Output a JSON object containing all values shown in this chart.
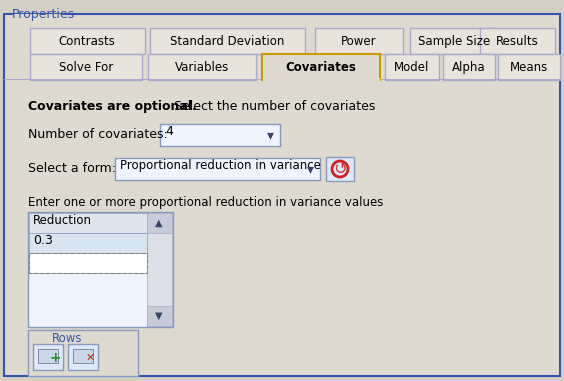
{
  "bg_color": "#d4cfc4",
  "panel_bg": "#dedad0",
  "white": "#ffffff",
  "blue_text": "#3355aa",
  "tab_border": "#aaaacc",
  "active_tab_border": "#cc9900",
  "input_bg": "#f0f4ff",
  "title": "Properties",
  "tabs_row1": [
    "Contrasts",
    "Standard Deviation",
    "Power",
    "Sample Size",
    "Results"
  ],
  "tabs_row2": [
    "Solve For",
    "Variables",
    "Covariates",
    "Model",
    "Alpha",
    "Means"
  ],
  "active_tab": "Covariates",
  "label_bold": "Covariates are optional.",
  "label_normal": " Select the number of covariates",
  "num_cov_label": "Number of covariates:",
  "num_cov_value": "4",
  "form_label": "Select a form:",
  "form_value": "Proportional reduction in variance",
  "enter_label": "Enter one or more proportional reduction in variance values",
  "table_header": "Reduction",
  "table_value": "0.3",
  "rows_label": "Rows"
}
